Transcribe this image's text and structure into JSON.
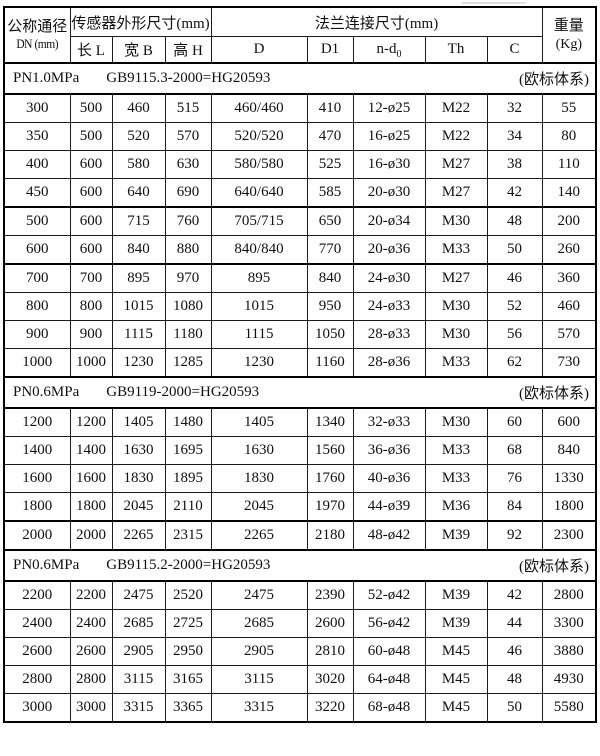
{
  "header": {
    "dn_title": "公称通径",
    "dn_sub": "DN (mm)",
    "sensor_group": "传感器外形尺寸(mm)",
    "flange_group": "法兰连接尺寸(mm)",
    "weight_title": "重量",
    "weight_sub": "(Kg)",
    "col_length": "长 L",
    "col_width": "宽 B",
    "col_height": "高 H",
    "col_d": "D",
    "col_d1": "D1",
    "col_nd0_main": "n-d",
    "col_nd0_sub": "0",
    "col_th": "Th",
    "col_c": "C"
  },
  "thick_top_rows": [
    "500",
    "700",
    "2000"
  ],
  "sections": [
    {
      "pressure": "PN1.0MPa",
      "standard": "GB9115.3-2000=HG20593",
      "system": "(欧标体系)",
      "rows": [
        [
          "300",
          "500",
          "460",
          "515",
          "460/460",
          "410",
          "12-ø25",
          "M22",
          "32",
          "55"
        ],
        [
          "350",
          "500",
          "520",
          "570",
          "520/520",
          "470",
          "16-ø25",
          "M22",
          "34",
          "80"
        ],
        [
          "400",
          "600",
          "580",
          "630",
          "580/580",
          "525",
          "16-ø30",
          "M27",
          "38",
          "110"
        ],
        [
          "450",
          "600",
          "640",
          "690",
          "640/640",
          "585",
          "20-ø30",
          "M27",
          "42",
          "140"
        ],
        [
          "500",
          "600",
          "715",
          "760",
          "705/715",
          "650",
          "20-ø34",
          "M30",
          "48",
          "200"
        ],
        [
          "600",
          "600",
          "840",
          "880",
          "840/840",
          "770",
          "20-ø36",
          "M33",
          "50",
          "260"
        ],
        [
          "700",
          "700",
          "895",
          "970",
          "895",
          "840",
          "24-ø30",
          "M27",
          "46",
          "360"
        ],
        [
          "800",
          "800",
          "1015",
          "1080",
          "1015",
          "950",
          "24-ø33",
          "M30",
          "52",
          "460"
        ],
        [
          "900",
          "900",
          "1115",
          "1180",
          "1115",
          "1050",
          "28-ø33",
          "M30",
          "56",
          "570"
        ],
        [
          "1000",
          "1000",
          "1230",
          "1285",
          "1230",
          "1160",
          "28-ø36",
          "M33",
          "62",
          "730"
        ]
      ]
    },
    {
      "pressure": "PN0.6MPa",
      "standard": "GB9119-2000=HG20593",
      "system": "(欧标体系)",
      "rows": [
        [
          "1200",
          "1200",
          "1405",
          "1480",
          "1405",
          "1340",
          "32-ø33",
          "M30",
          "60",
          "600"
        ],
        [
          "1400",
          "1400",
          "1630",
          "1695",
          "1630",
          "1560",
          "36-ø36",
          "M33",
          "68",
          "840"
        ],
        [
          "1600",
          "1600",
          "1830",
          "1895",
          "1830",
          "1760",
          "40-ø36",
          "M33",
          "76",
          "1330"
        ],
        [
          "1800",
          "1800",
          "2045",
          "2110",
          "2045",
          "1970",
          "44-ø39",
          "M36",
          "84",
          "1800"
        ],
        [
          "2000",
          "2000",
          "2265",
          "2315",
          "2265",
          "2180",
          "48-ø42",
          "M39",
          "92",
          "2300"
        ]
      ]
    },
    {
      "pressure": "PN0.6MPa",
      "standard": "GB9115.2-2000=HG20593",
      "system": "(欧标体系)",
      "rows": [
        [
          "2200",
          "2200",
          "2475",
          "2520",
          "2475",
          "2390",
          "52-ø42",
          "M39",
          "42",
          "2800"
        ],
        [
          "2400",
          "2400",
          "2685",
          "2725",
          "2685",
          "2600",
          "56-ø42",
          "M39",
          "44",
          "3300"
        ],
        [
          "2600",
          "2600",
          "2905",
          "2950",
          "2905",
          "2810",
          "60-ø48",
          "M45",
          "46",
          "3880"
        ],
        [
          "2800",
          "2800",
          "3115",
          "3165",
          "3115",
          "3020",
          "64-ø48",
          "M45",
          "48",
          "4930"
        ],
        [
          "3000",
          "3000",
          "3315",
          "3365",
          "3315",
          "3220",
          "68-ø48",
          "M45",
          "50",
          "5580"
        ]
      ]
    }
  ]
}
